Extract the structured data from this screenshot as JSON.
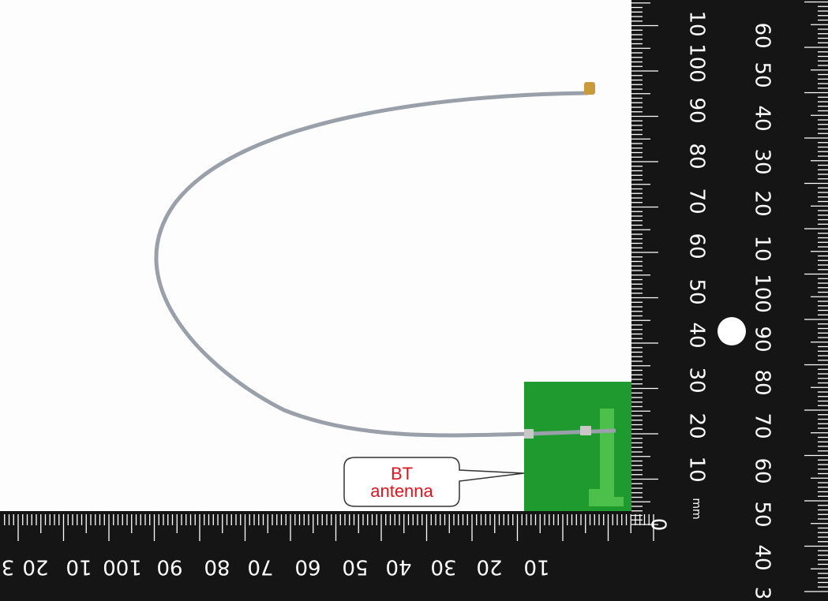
{
  "callout": {
    "line1": "BT",
    "line2": "antenna"
  },
  "vertical_ruler": {
    "inner": [
      "10",
      "100",
      "90",
      "80",
      "70",
      "60",
      "50",
      "40",
      "30",
      "20",
      "10"
    ],
    "unit": "mm",
    "zero": "0",
    "outer": [
      "60",
      "50",
      "40",
      "30",
      "20",
      "10",
      "100",
      "90",
      "80",
      "70",
      "60",
      "50",
      "40",
      "3"
    ]
  },
  "bottom_ruler": {
    "labels": [
      "3",
      "20",
      "10",
      "100",
      "90",
      "80",
      "70",
      "60",
      "50",
      "40",
      "30",
      "20",
      "10"
    ]
  }
}
